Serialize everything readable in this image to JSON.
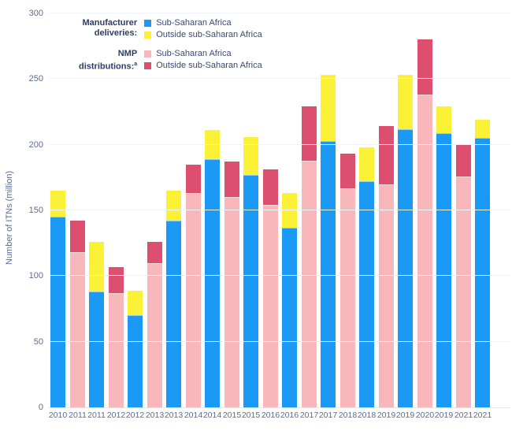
{
  "y_axis": {
    "title": "Number of ITNs (million)",
    "ticks": [
      0,
      50,
      100,
      150,
      200,
      250,
      300
    ],
    "max": 300
  },
  "legend": {
    "manufacturer": {
      "title_line1": "Manufacturer",
      "title_line2": "deliveries:",
      "items": [
        {
          "label": "Sub-Saharan Africa",
          "color": "#1b9af5"
        },
        {
          "label": "Outside sub-Saharan Africa",
          "color": "#fbf136"
        }
      ]
    },
    "nmp": {
      "title_line1": "NMP",
      "title_line2": "distributions:",
      "footnote_marker": "a",
      "items": [
        {
          "label": "Sub-Saharan Africa",
          "color": "#f8b7bb"
        },
        {
          "label": "Outside sub-Saharan Africa",
          "color": "#dd4f6e"
        }
      ]
    }
  },
  "chart_data": {
    "type": "bar",
    "stacked": true,
    "title": "",
    "xlabel": "",
    "ylabel": "Number of ITNs (million)",
    "ylim": [
      0,
      300
    ],
    "grid": "faint horizontal lines every 50",
    "legend_position": "top-left inside plot",
    "units": "million ITNs",
    "colors": {
      "delivery_ssa": "#1b9af5",
      "delivery_outside": "#fbf136",
      "distribution_ssa": "#f8b7bb",
      "distribution_outside": "#dd4f6e"
    },
    "series_note": "Each group pairs a manufacturer-deliveries bar (blue=Sub-Saharan Africa, yellow=Outside sub-Saharan Africa) with an NMP-distributions bar (pink=Sub-Saharan Africa, red=Outside sub-Saharan Africa). Labels shown exactly as printed; second-to-last blue bar is printed '2019' in the source image.",
    "groups": [
      {
        "delivery": {
          "label": "2010",
          "ssa": 145,
          "outside": 20
        },
        "distribution": {
          "label": "2011",
          "ssa": 118,
          "outside": 24
        }
      },
      {
        "delivery": {
          "label": "2011",
          "ssa": 88,
          "outside": 38
        },
        "distribution": {
          "label": "2012",
          "ssa": 87,
          "outside": 20
        }
      },
      {
        "delivery": {
          "label": "2012",
          "ssa": 70,
          "outside": 19
        },
        "distribution": {
          "label": "2013",
          "ssa": 110,
          "outside": 16
        }
      },
      {
        "delivery": {
          "label": "2013",
          "ssa": 142,
          "outside": 23
        },
        "distribution": {
          "label": "2014",
          "ssa": 163,
          "outside": 22
        }
      },
      {
        "delivery": {
          "label": "2014",
          "ssa": 189,
          "outside": 22
        },
        "distribution": {
          "label": "2015",
          "ssa": 160,
          "outside": 27
        }
      },
      {
        "delivery": {
          "label": "2015",
          "ssa": 177,
          "outside": 29
        },
        "distribution": {
          "label": "2016",
          "ssa": 154,
          "outside": 27
        }
      },
      {
        "delivery": {
          "label": "2016",
          "ssa": 137,
          "outside": 26
        },
        "distribution": {
          "label": "2017",
          "ssa": 188,
          "outside": 41
        }
      },
      {
        "delivery": {
          "label": "2017",
          "ssa": 203,
          "outside": 50
        },
        "distribution": {
          "label": "2018",
          "ssa": 167,
          "outside": 26
        }
      },
      {
        "delivery": {
          "label": "2018",
          "ssa": 172,
          "outside": 26
        },
        "distribution": {
          "label": "2019",
          "ssa": 170,
          "outside": 44
        }
      },
      {
        "delivery": {
          "label": "2019",
          "ssa": 212,
          "outside": 41
        },
        "distribution": {
          "label": "2020",
          "ssa": 238,
          "outside": 42
        }
      },
      {
        "delivery": {
          "label": "2019",
          "ssa": 209,
          "outside": 20
        },
        "distribution": {
          "label": "2021",
          "ssa": 176,
          "outside": 24
        }
      },
      {
        "delivery": {
          "label": "2021",
          "ssa": 205,
          "outside": 14
        },
        "distribution": null
      }
    ]
  }
}
